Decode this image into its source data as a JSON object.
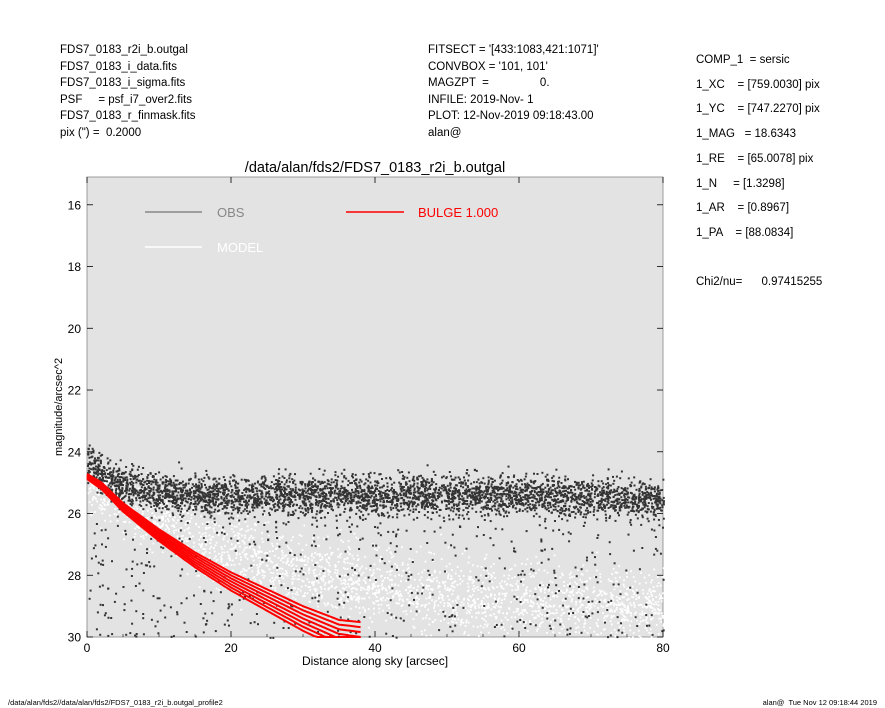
{
  "header_left": [
    "FDS7_0183_r2i_b.outgal",
    "FDS7_0183_i_data.fits",
    "FDS7_0183_i_sigma.fits",
    "PSF     = psf_i7_over2.fits",
    "FDS7_0183_r_finmask.fits",
    "pix (\") =  0.2000"
  ],
  "header_mid": [
    "FITSECT = '[433:1083,421:1071]'",
    "CONVBOX = '101, 101'",
    "MAGZPT  =                0.",
    "INFILE: 2019-Nov- 1",
    "PLOT: 12-Nov-2019 09:18:43.00",
    "alan@"
  ],
  "header_right": [
    "COMP_1  = sersic",
    "1_XC    = [759.0030] pix",
    "1_YC    = [747.2270] pix",
    "1_MAG   = 18.6343",
    "1_RE    = [65.0078] pix",
    "1_N     = [1.3298]",
    "1_AR    = [0.8967]",
    "1_PA    = [88.0834]",
    "",
    "Chi2/nu=      0.97415255"
  ],
  "footer_left": "/data/alan/fds2//data/alan/fds2/FDS7_0183_r2i_b.outgal_profile2",
  "footer_right": "alan@  Tue Nov 12 09:18:44 2019",
  "chart_data": {
    "type": "scatter",
    "title": "/data/alan/fds2/FDS7_0183_r2i_b.outgal",
    "xlabel": "Distance along sky [arcsec]",
    "ylabel": "magnitude/arcsec^2",
    "xlim": [
      0,
      80
    ],
    "ylim": [
      30,
      15.1
    ],
    "y_inverted": true,
    "grid": false,
    "x_ticks": [
      0,
      20,
      40,
      60,
      80
    ],
    "y_ticks": [
      16,
      18,
      20,
      22,
      24,
      26,
      28,
      30
    ],
    "background_color": "#e3e3e3",
    "legend": [
      {
        "label": "OBS",
        "color": "#888888"
      },
      {
        "label": "MODEL",
        "color": "#ffffff"
      },
      {
        "label": "BULGE  1.000",
        "color": "#ff0000"
      }
    ],
    "series": [
      {
        "name": "OBS",
        "color": "#333333",
        "x": [
          0,
          2,
          4,
          6,
          8,
          10,
          12,
          15,
          20,
          25,
          30,
          35,
          40,
          45,
          50,
          55,
          60,
          65,
          70,
          75,
          80
        ],
        "y": [
          24.4,
          24.8,
          25.0,
          25.1,
          25.2,
          25.3,
          25.3,
          25.4,
          25.4,
          25.4,
          25.4,
          25.4,
          25.4,
          25.4,
          25.4,
          25.4,
          25.4,
          25.4,
          25.5,
          25.5,
          25.6
        ]
      },
      {
        "name": "MODEL",
        "color": "#ffffff",
        "x": [
          0,
          5,
          10,
          15,
          20,
          30,
          40,
          50,
          60,
          70,
          80
        ],
        "y": [
          24.9,
          25.5,
          26.2,
          26.8,
          27.3,
          27.9,
          28.3,
          28.6,
          28.8,
          29.0,
          29.1
        ]
      },
      {
        "name": "BULGE  1.000",
        "color": "#ff0000",
        "x": [
          0,
          2,
          5,
          10,
          15,
          20,
          25,
          30,
          35,
          38
        ],
        "y": [
          24.8,
          25.1,
          25.8,
          26.7,
          27.5,
          28.2,
          28.8,
          29.4,
          29.9,
          30.0
        ]
      }
    ]
  }
}
